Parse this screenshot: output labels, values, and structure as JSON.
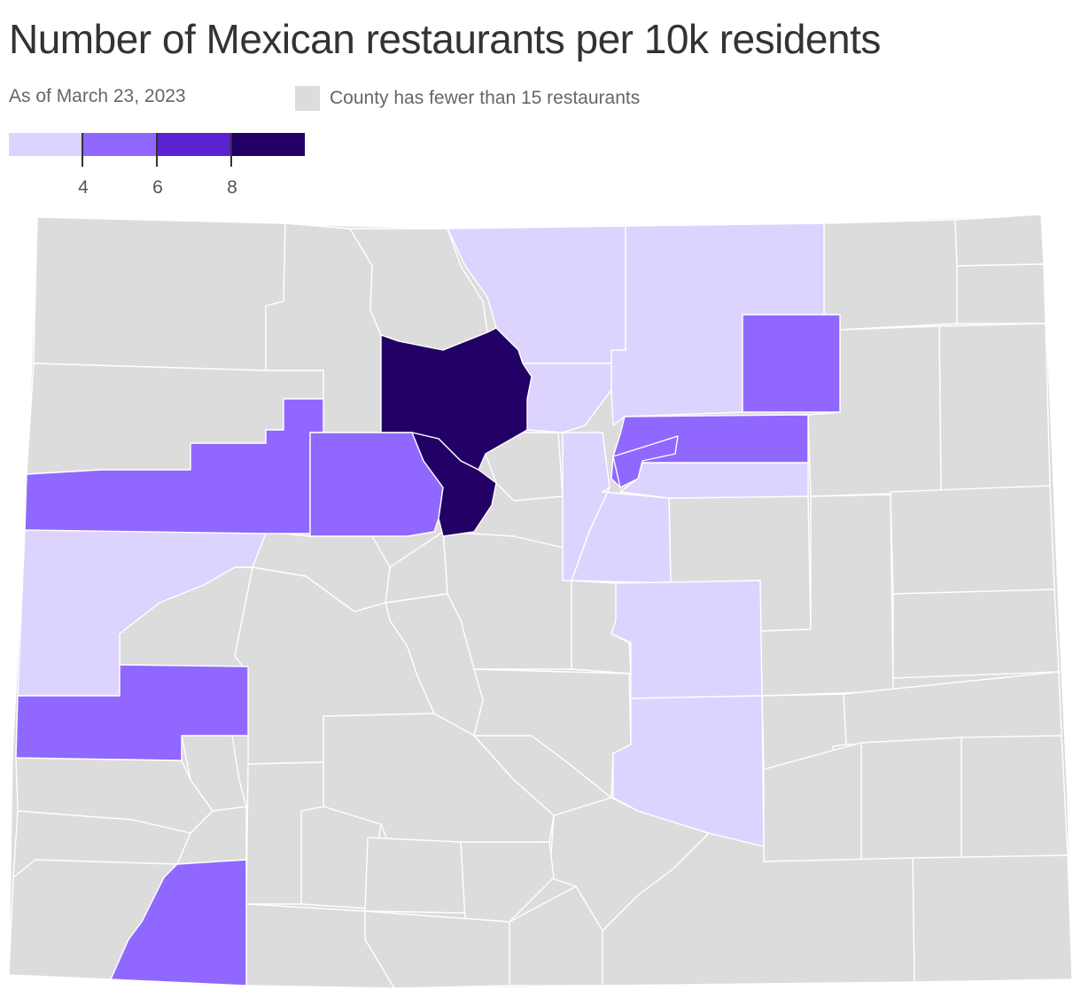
{
  "header": {
    "title": "Number of Mexican restaurants per 10k residents",
    "subtitle": "As of March 23, 2023"
  },
  "legend": {
    "nodata_label": "County has fewer than 15 restaurants",
    "nodata_color": "#dcdcdc",
    "bins": [
      {
        "color": "#ddd3ff"
      },
      {
        "color": "#9068ff"
      },
      {
        "color": "#5a22d0"
      },
      {
        "color": "#220066"
      }
    ],
    "tick_labels": [
      "4",
      "6",
      "8"
    ]
  },
  "map_colors": {
    "light": "#ddd3ff",
    "medium": "#9068ff",
    "dark": "#220066",
    "nodata": "#dcdcdc",
    "border": "#ffffff"
  }
}
